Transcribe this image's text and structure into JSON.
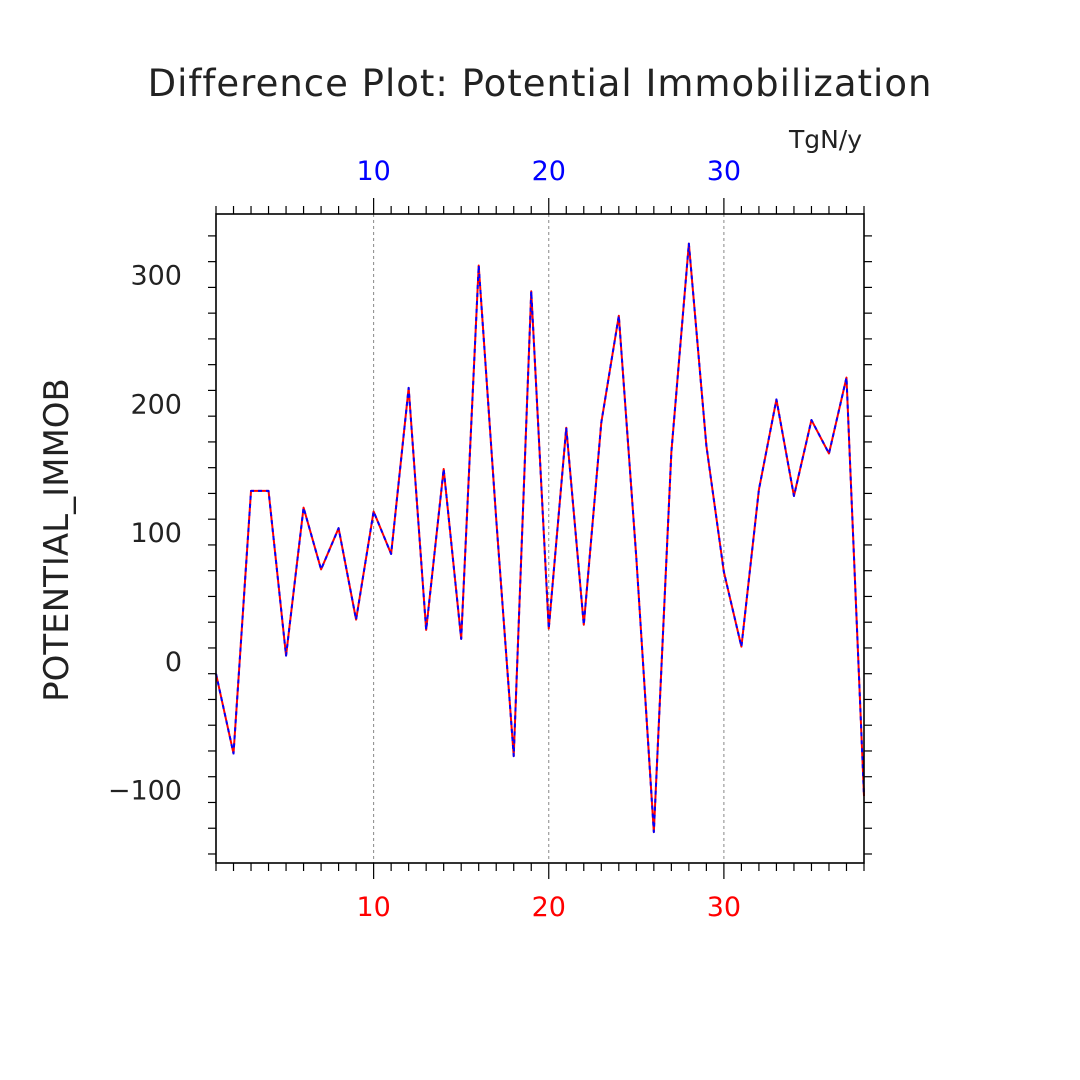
{
  "chart_data": {
    "type": "line",
    "title": "Difference Plot: Potential Immobilization",
    "units": "TgN/y",
    "ylabel": "POTENTIAL_IMMOB",
    "xlabel": "",
    "xlim": [
      1,
      38
    ],
    "ylim": [
      -157,
      347
    ],
    "x_ticks": [
      10,
      20,
      30
    ],
    "x_tick_labels": [
      "10",
      "20",
      "30"
    ],
    "y_ticks": [
      -100,
      0,
      100,
      200,
      300
    ],
    "y_tick_labels": [
      "−100",
      "0",
      "100",
      "200",
      "300"
    ],
    "grid": "vertical dashed at major x ticks",
    "colors": {
      "series_a": "#ff0000",
      "series_b": "#0000ff",
      "bottom_axis": "#ff0000",
      "top_axis": "#0000ff",
      "axes": "#000000",
      "grid": "#888888"
    },
    "x": [
      1,
      2,
      3,
      4,
      5,
      6,
      7,
      8,
      9,
      10,
      11,
      12,
      13,
      14,
      15,
      16,
      17,
      18,
      19,
      20,
      21,
      22,
      23,
      24,
      25,
      26,
      27,
      28,
      29,
      30,
      31,
      32,
      33,
      34,
      35,
      36,
      37,
      38
    ],
    "series": [
      {
        "values": [
          -10,
          -72,
          132,
          132,
          4,
          119,
          71,
          103,
          32,
          116,
          83,
          212,
          24,
          149,
          17,
          307,
          110,
          -74,
          287,
          25,
          181,
          28,
          185,
          268,
          80,
          -133,
          162,
          324,
          167,
          69,
          11,
          133,
          203,
          128,
          187,
          161,
          220,
          -105
        ]
      },
      {
        "values": [
          -10,
          -72,
          132,
          132,
          4,
          119,
          71,
          103,
          32,
          116,
          83,
          212,
          24,
          149,
          17,
          307,
          110,
          -74,
          287,
          25,
          181,
          28,
          185,
          268,
          80,
          -133,
          162,
          324,
          167,
          69,
          11,
          133,
          203,
          128,
          187,
          161,
          220,
          -105
        ]
      }
    ]
  }
}
